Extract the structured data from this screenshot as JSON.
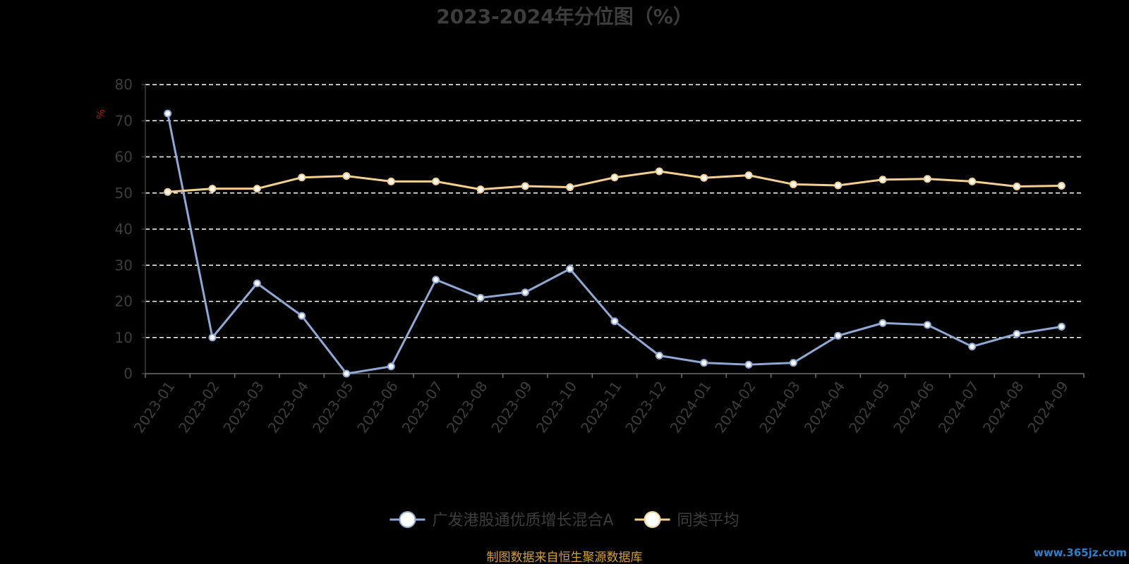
{
  "chart_data": {
    "type": "line",
    "title": "2023-2024年分位图（%）",
    "ylabel": "%",
    "ylim": [
      0,
      80
    ],
    "yticks": [
      0,
      10,
      20,
      30,
      40,
      50,
      60,
      70,
      80
    ],
    "grid": true,
    "legend_position": "bottom",
    "categories": [
      "2023-01",
      "2023-02",
      "2023-03",
      "2023-04",
      "2023-05",
      "2023-06",
      "2023-07",
      "2023-08",
      "2023-09",
      "2023-10",
      "2023-11",
      "2023-12",
      "2024-01",
      "2024-02",
      "2024-03",
      "2024-04",
      "2024-05",
      "2024-06",
      "2024-07",
      "2024-08",
      "2024-09"
    ],
    "series": [
      {
        "name": "广发港股通优质增长混合A",
        "color": "#8fa9d6",
        "values": [
          72,
          10,
          25,
          16,
          0,
          2,
          26,
          21,
          22.5,
          29,
          14.5,
          5,
          3,
          2.5,
          3,
          10.5,
          14,
          13.5,
          7.5,
          11,
          13
        ]
      },
      {
        "name": "同类平均",
        "color": "#f5cf8f",
        "values": [
          50.3,
          51.2,
          51.2,
          54.3,
          54.7,
          53.2,
          53.2,
          51.0,
          51.9,
          51.6,
          54.3,
          56.0,
          54.2,
          54.9,
          52.4,
          52.1,
          53.7,
          53.9,
          53.2,
          51.8,
          52.0
        ]
      }
    ]
  },
  "footer": {
    "source": "制图数据来自恒生聚源数据库",
    "watermark": "www.365jz.com"
  }
}
